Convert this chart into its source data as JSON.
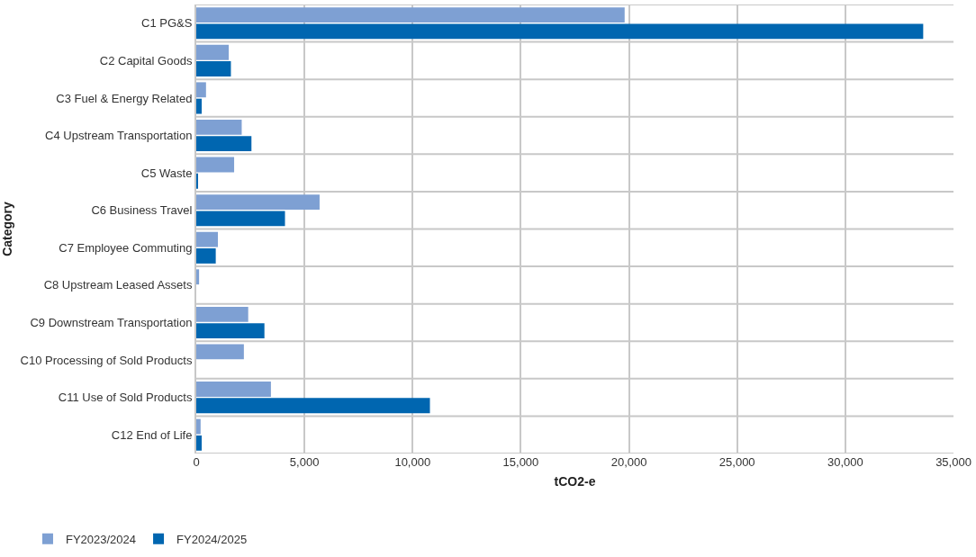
{
  "chart_data": {
    "type": "bar",
    "orientation": "horizontal",
    "xlabel": "tCO2-e",
    "ylabel": "Category",
    "categories": [
      "C1 PG&S",
      "C2 Capital Goods",
      "C3 Fuel & Energy Related",
      "C4 Upstream Transportation",
      "C5 Waste",
      "C6 Business Travel",
      "C7 Employee Commuting",
      "C8 Upstream Leased Assets",
      "C9 Downstream Transportation",
      "C10 Processing of Sold Products",
      "C11 Use of Sold Products",
      "C12 End of Life"
    ],
    "series": [
      {
        "name": "FY2023/2024",
        "color": "#7ea0d3",
        "values": [
          19800,
          1500,
          450,
          2100,
          1750,
          5700,
          1000,
          130,
          2400,
          2200,
          3450,
          200
        ]
      },
      {
        "name": "FY2024/2025",
        "color": "#0066b0",
        "values": [
          33600,
          1600,
          250,
          2550,
          80,
          4100,
          900,
          null,
          3150,
          null,
          10800,
          250
        ]
      }
    ],
    "xlim": [
      0,
      35000
    ],
    "xticks": [
      0,
      {
        "value": 5000,
        "label": "5,000"
      },
      {
        "value": 10000,
        "label": "10,000"
      },
      {
        "value": 15000,
        "label": "15,000"
      },
      {
        "value": 20000,
        "label": "20,000"
      },
      {
        "value": 25000,
        "label": "25,000"
      },
      {
        "value": 30000,
        "label": "30,000"
      },
      {
        "value": 35000,
        "label": "35,000"
      }
    ],
    "grid": true,
    "legend": "bottom left"
  }
}
